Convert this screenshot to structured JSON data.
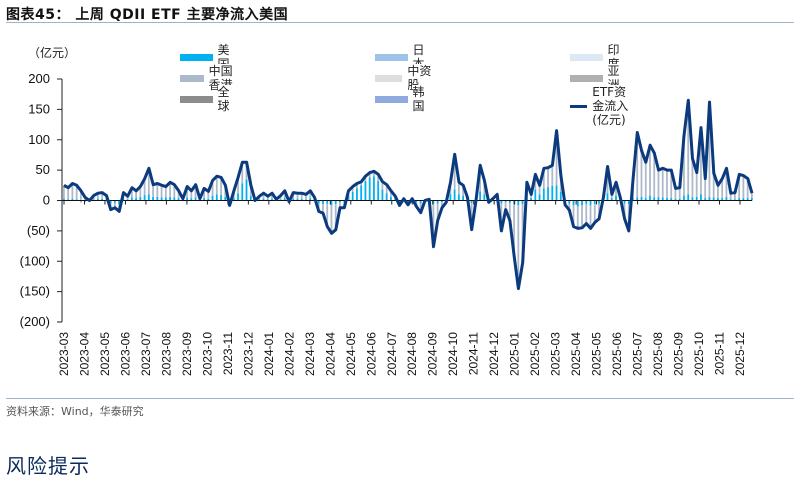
{
  "header": {
    "title": "图表45：  上周 QDII ETF 主要净流入美国"
  },
  "footer": {
    "source": "资料来源：Wind，华泰研究",
    "section_title": "风险提示"
  },
  "chart_data": {
    "type": "bar+line",
    "unit_label": "（亿元）",
    "ylim": [
      -200,
      200
    ],
    "yticks": [
      200,
      150,
      100,
      50,
      0,
      -50,
      -100,
      -150,
      -200
    ],
    "ytick_labels": [
      "200",
      "150",
      "100",
      "50",
      "0",
      "(50)",
      "(100)",
      "(150)",
      "(200)"
    ],
    "xtick_labels": [
      "2023-03",
      "2023-04",
      "2023-05",
      "2023-06",
      "2023-07",
      "2023-08",
      "2023-09",
      "2023-10",
      "2023-11",
      "2023-12",
      "2024-01",
      "2024-02",
      "2024-03",
      "2024-04",
      "2024-05",
      "2024-06",
      "2024-07",
      "2024-08",
      "2024-09",
      "2024-10",
      "2024-11",
      "2024-12",
      "2025-01",
      "2025-02",
      "2025-03",
      "2025-04",
      "2025-05",
      "2025-06",
      "2025-07",
      "2025-08",
      "2025-09",
      "2025-10",
      "2025-11",
      "2025-12"
    ],
    "legend": [
      {
        "name": "美国",
        "color": "#00b0f0"
      },
      {
        "name": "日本",
        "color": "#9dc3e6"
      },
      {
        "name": "印度",
        "color": "#dde8f5"
      },
      {
        "name": "中国香港",
        "color": "#adb9ca"
      },
      {
        "name": "中资股",
        "color": "#dedede"
      },
      {
        "name": "亚洲",
        "color": "#b0b0b0"
      },
      {
        "name": "全球",
        "color": "#8c8c8c"
      },
      {
        "name": "韩国",
        "color": "#8faadc"
      },
      {
        "name": "ETF资金流入(亿元)",
        "color": "#0b3a7e"
      }
    ],
    "line_series": {
      "name": "ETF资金流入(亿元)",
      "values": [
        25,
        21,
        28,
        25,
        16,
        5,
        0,
        8,
        12,
        13,
        8,
        -15,
        -12,
        -18,
        13,
        7,
        21,
        16,
        23,
        36,
        53,
        26,
        28,
        25,
        23,
        30,
        26,
        16,
        3,
        23,
        16,
        26,
        3,
        20,
        15,
        33,
        40,
        38,
        25,
        -8,
        16,
        38,
        63,
        63,
        25,
        0,
        7,
        12,
        7,
        12,
        2,
        8,
        16,
        -2,
        13,
        12,
        12,
        10,
        16,
        5,
        -18,
        -21,
        -43,
        -54,
        -48,
        -12,
        -12,
        16,
        23,
        28,
        31,
        40,
        46,
        48,
        43,
        31,
        26,
        16,
        7,
        -8,
        3,
        -7,
        3,
        -10,
        -20,
        0,
        2,
        -76,
        -33,
        -12,
        -3,
        30,
        76,
        30,
        25,
        5,
        -48,
        0,
        58,
        33,
        -3,
        3,
        10,
        -50,
        -15,
        -33,
        -92,
        -145,
        -102,
        30,
        10,
        43,
        25,
        53,
        54,
        58,
        115,
        41,
        -7,
        -16,
        -43,
        -46,
        -45,
        -38,
        -46,
        -36,
        -30,
        5,
        56,
        10,
        30,
        5,
        -30,
        -50,
        36,
        112,
        82,
        63,
        91,
        78,
        50,
        53,
        50,
        50,
        20,
        21,
        107,
        165,
        69,
        46,
        120,
        36,
        162,
        45,
        25,
        36,
        53,
        12,
        13,
        43,
        41,
        36,
        12
      ]
    },
    "bar_series_us": {
      "name": "美国",
      "values": [
        3,
        2,
        3,
        2,
        -3,
        -2,
        0,
        2,
        3,
        3,
        2,
        -5,
        -4,
        -6,
        3,
        2,
        5,
        4,
        6,
        9,
        10,
        6,
        6,
        5,
        5,
        6,
        5,
        4,
        1,
        5,
        4,
        5,
        1,
        4,
        3,
        8,
        10,
        9,
        6,
        -2,
        4,
        12,
        28,
        35,
        8,
        0,
        2,
        3,
        2,
        3,
        1,
        2,
        4,
        -1,
        3,
        3,
        3,
        2,
        4,
        1,
        -5,
        -6,
        -5,
        -8,
        -6,
        -3,
        -2,
        8,
        14,
        20,
        25,
        32,
        38,
        40,
        32,
        18,
        12,
        6,
        2,
        -3,
        1,
        -2,
        1,
        -3,
        -5,
        0,
        1,
        -6,
        -5,
        -3,
        -1,
        10,
        18,
        10,
        8,
        2,
        -4,
        0,
        15,
        10,
        -1,
        1,
        4,
        -5,
        -3,
        -4,
        -6,
        -8,
        -6,
        12,
        4,
        18,
        10,
        20,
        22,
        24,
        25,
        14,
        -2,
        -5,
        -8,
        -10,
        -8,
        -6,
        -8,
        -6,
        -5,
        2,
        12,
        4,
        8,
        2,
        -5,
        -6,
        4,
        5,
        6,
        4,
        8,
        5,
        6,
        5,
        4,
        4,
        3,
        3,
        8,
        10,
        5,
        6,
        10,
        4,
        6,
        5,
        4,
        4,
        6,
        2,
        2,
        4,
        4,
        4,
        4
      ]
    }
  }
}
